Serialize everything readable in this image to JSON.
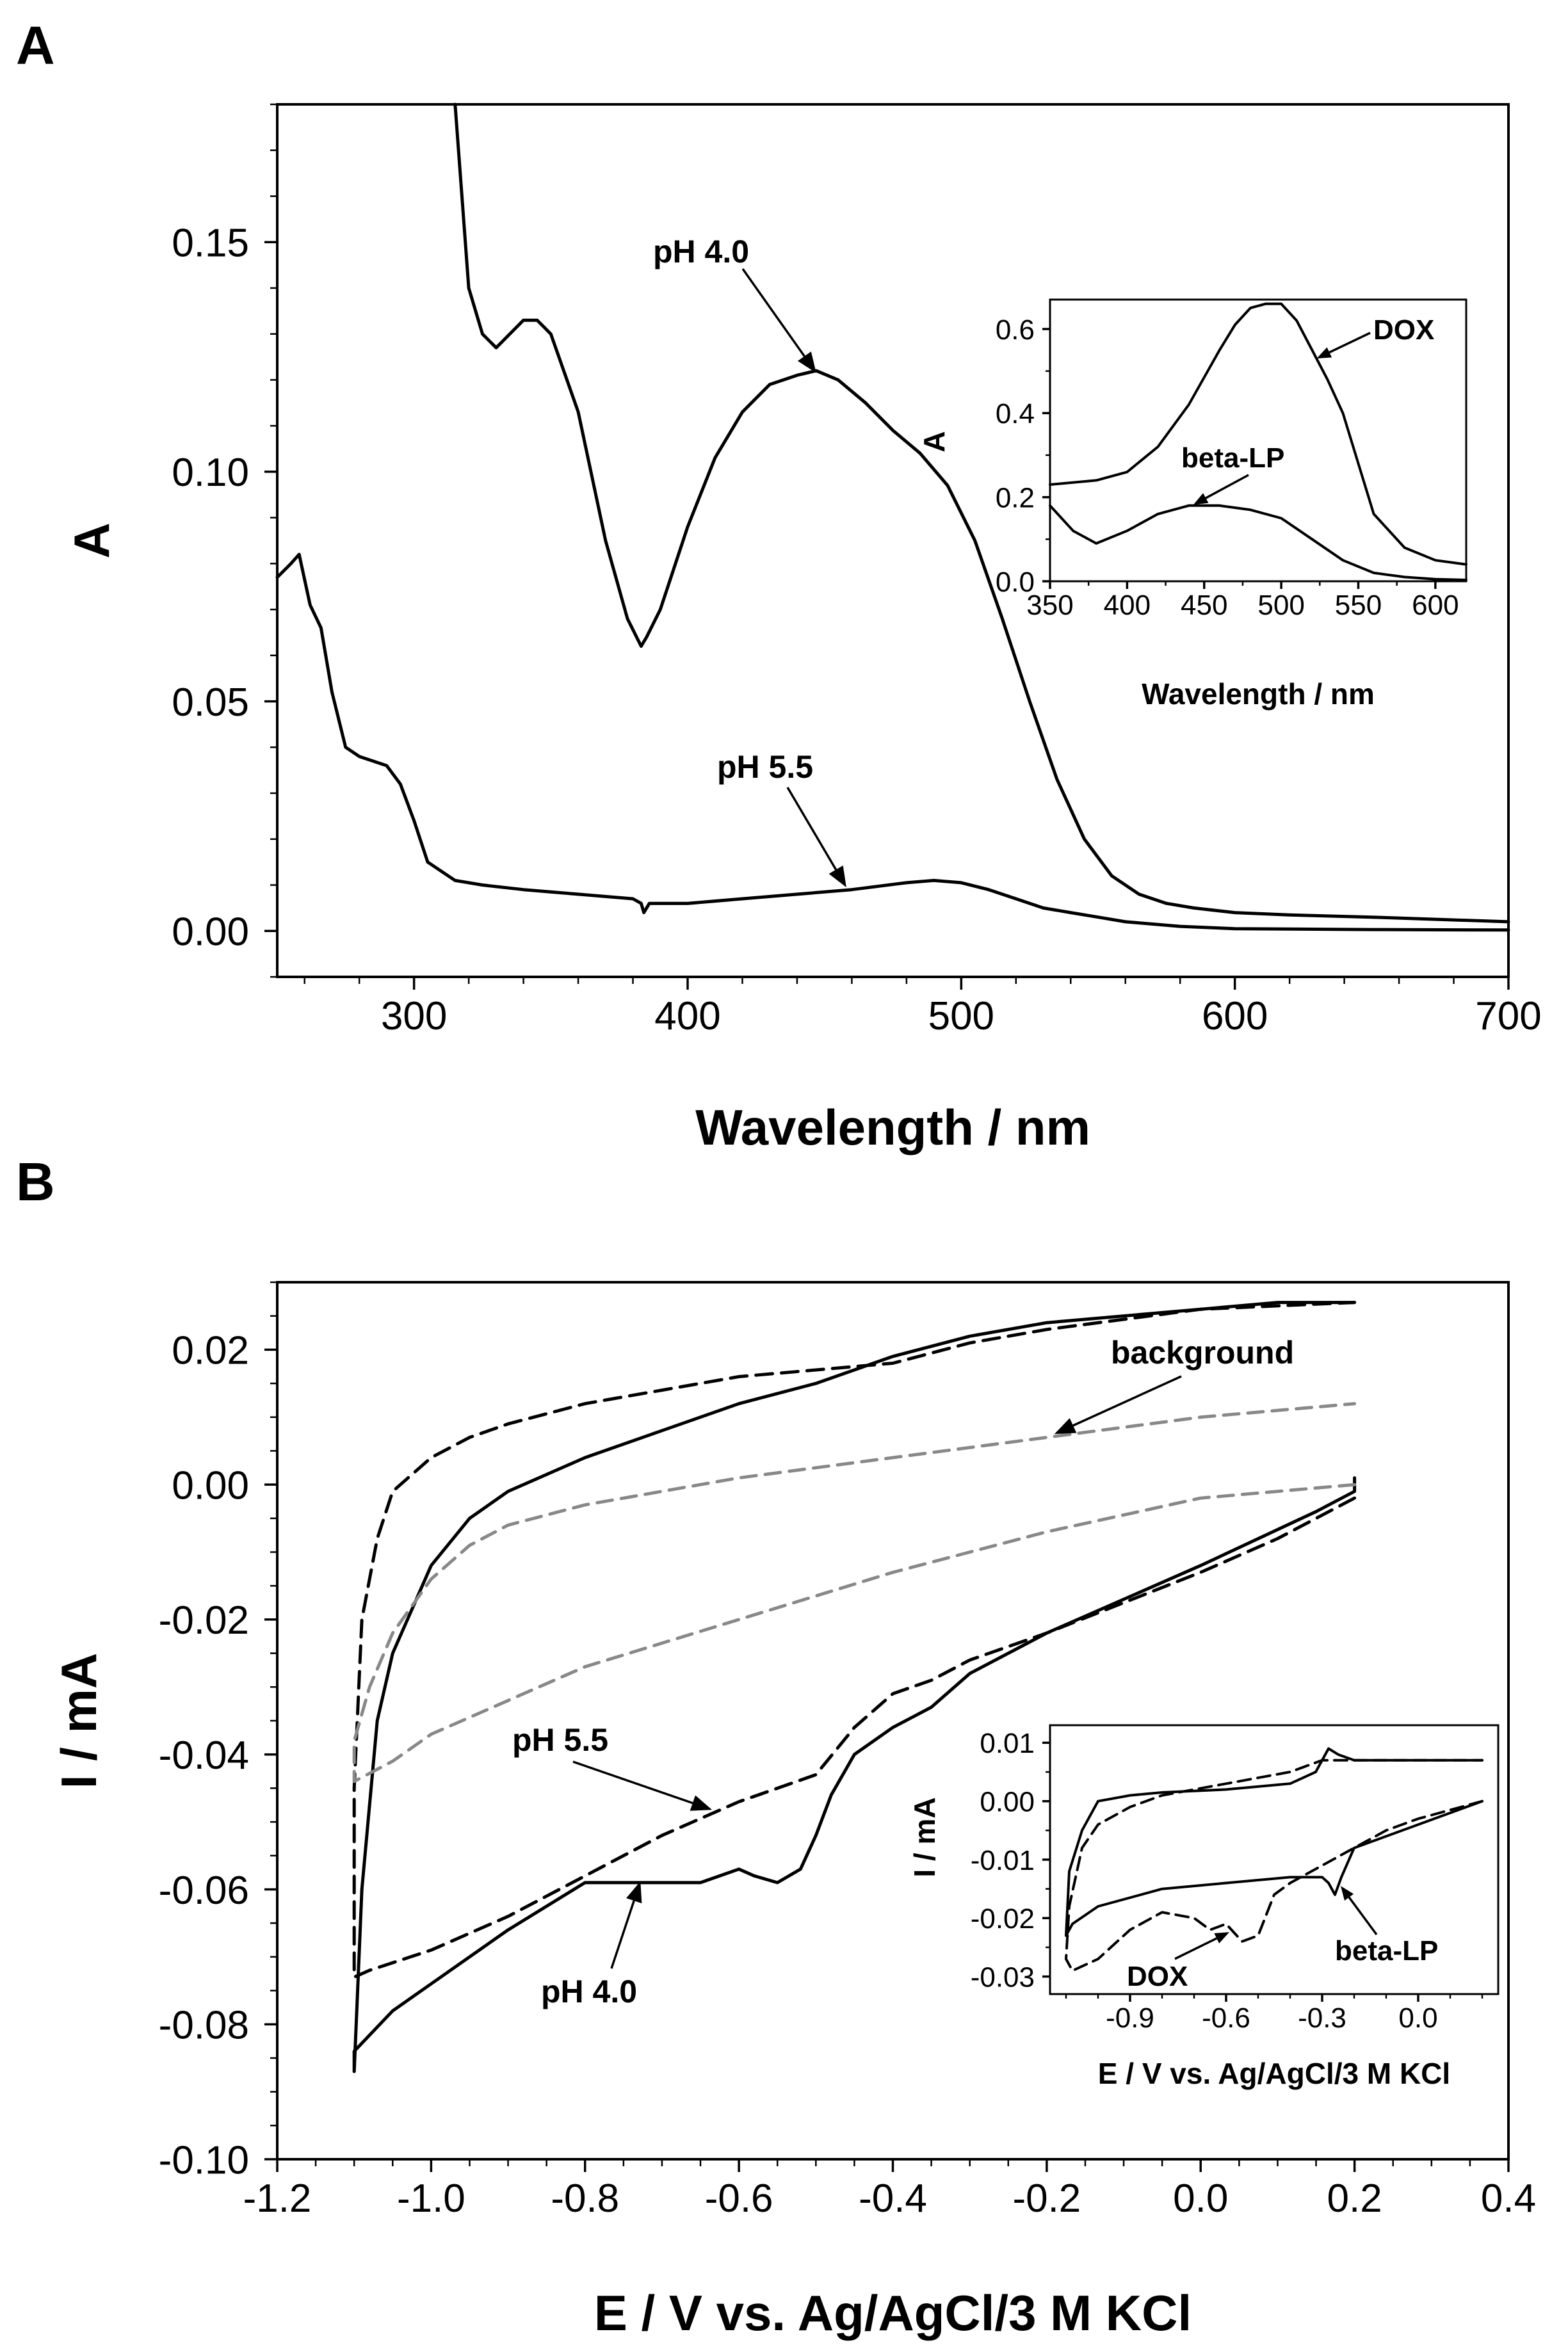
{
  "chart_data": [
    {
      "id": "A",
      "type": "line",
      "panel_label": "A",
      "xlabel": "Wavelength / nm",
      "ylabel": "A",
      "xlim": [
        250,
        700
      ],
      "ylim": [
        -0.01,
        0.18
      ],
      "xticks": [
        300,
        400,
        500,
        600,
        700
      ],
      "yticks": [
        0.0,
        0.05,
        0.1,
        0.15
      ],
      "xtick_labels": [
        "300",
        "400",
        "500",
        "600",
        "700"
      ],
      "ytick_labels": [
        "0.00",
        "0.05",
        "0.10",
        "0.15"
      ],
      "series": [
        {
          "name": "pH 4.0",
          "style": "solid",
          "x": [
            315,
            320,
            325,
            330,
            335,
            340,
            345,
            350,
            360,
            370,
            378,
            383,
            385,
            390,
            400,
            410,
            420,
            430,
            440,
            447,
            455,
            465,
            475,
            485,
            495,
            505,
            515,
            525,
            535,
            545,
            555,
            565,
            575,
            585,
            600,
            620,
            650,
            700
          ],
          "y": [
            0.18,
            0.14,
            0.13,
            0.127,
            0.13,
            0.133,
            0.133,
            0.13,
            0.113,
            0.085,
            0.068,
            0.062,
            0.064,
            0.07,
            0.088,
            0.103,
            0.113,
            0.119,
            0.121,
            0.122,
            0.12,
            0.115,
            0.109,
            0.104,
            0.097,
            0.085,
            0.068,
            0.05,
            0.033,
            0.02,
            0.012,
            0.008,
            0.006,
            0.005,
            0.004,
            0.0035,
            0.003,
            0.002
          ]
        },
        {
          "name": "pH 5.5",
          "style": "solid",
          "x": [
            250,
            255,
            258,
            262,
            266,
            270,
            275,
            280,
            290,
            295,
            300,
            305,
            315,
            325,
            340,
            360,
            380,
            383,
            384,
            386,
            400,
            420,
            440,
            460,
            480,
            490,
            500,
            510,
            520,
            530,
            540,
            550,
            560,
            580,
            600,
            650,
            700
          ],
          "y": [
            0.077,
            0.08,
            0.082,
            0.071,
            0.066,
            0.052,
            0.04,
            0.038,
            0.036,
            0.032,
            0.024,
            0.015,
            0.011,
            0.01,
            0.009,
            0.008,
            0.007,
            0.006,
            0.004,
            0.006,
            0.006,
            0.007,
            0.008,
            0.009,
            0.0105,
            0.011,
            0.0105,
            0.009,
            0.007,
            0.005,
            0.004,
            0.003,
            0.002,
            0.001,
            0.0005,
            0.0003,
            0.0002
          ]
        }
      ],
      "annotations": [
        "pH 4.0",
        "pH 5.5"
      ],
      "inset": {
        "type": "line",
        "xlabel": "Wavelength / nm",
        "ylabel": "A",
        "xlim": [
          350,
          620
        ],
        "ylim": [
          0.0,
          0.67
        ],
        "xticks": [
          350,
          400,
          450,
          500,
          550,
          600
        ],
        "yticks": [
          0.0,
          0.2,
          0.4,
          0.6
        ],
        "xtick_labels": [
          "350",
          "400",
          "450",
          "500",
          "550",
          "600"
        ],
        "ytick_labels": [
          "0.0",
          "0.2",
          "0.4",
          "0.6"
        ],
        "series": [
          {
            "name": "DOX",
            "x": [
              350,
              380,
              400,
              420,
              440,
              460,
              470,
              480,
              490,
              500,
              510,
              520,
              530,
              540,
              550,
              560,
              580,
              600,
              620
            ],
            "y": [
              0.23,
              0.24,
              0.26,
              0.32,
              0.42,
              0.55,
              0.61,
              0.65,
              0.66,
              0.66,
              0.62,
              0.55,
              0.48,
              0.4,
              0.28,
              0.16,
              0.08,
              0.05,
              0.04
            ]
          },
          {
            "name": "beta-LP",
            "x": [
              350,
              365,
              380,
              400,
              420,
              440,
              460,
              480,
              500,
              520,
              540,
              560,
              580,
              600,
              620
            ],
            "y": [
              0.18,
              0.12,
              0.09,
              0.12,
              0.16,
              0.18,
              0.18,
              0.17,
              0.15,
              0.1,
              0.05,
              0.02,
              0.01,
              0.005,
              0.003
            ]
          }
        ],
        "annotations": [
          "DOX",
          "beta-LP"
        ]
      }
    },
    {
      "id": "B",
      "type": "line",
      "panel_label": "B",
      "xlabel": "E / V vs. Ag/AgCl/3 M KCl",
      "ylabel": "I / mA",
      "xlim": [
        -1.2,
        0.4
      ],
      "ylim": [
        -0.1,
        0.03
      ],
      "xticks": [
        -1.2,
        -1.0,
        -0.8,
        -0.6,
        -0.4,
        -0.2,
        0.0,
        0.2,
        0.4
      ],
      "yticks": [
        -0.1,
        -0.08,
        -0.06,
        -0.04,
        -0.02,
        0.0,
        0.02
      ],
      "xtick_labels": [
        "-1.2",
        "-1.0",
        "-0.8",
        "-0.6",
        "-0.4",
        "-0.2",
        "0.0",
        "0.2",
        "0.4"
      ],
      "ytick_labels": [
        "-0.10",
        "-0.08",
        "-0.06",
        "-0.04",
        "-0.02",
        "0.00",
        "0.02"
      ],
      "series": [
        {
          "name": "pH 4.0",
          "style": "solid",
          "x": [
            0.2,
            0.2,
            0.15,
            0.0,
            -0.2,
            -0.3,
            -0.35,
            -0.4,
            -0.45,
            -0.48,
            -0.5,
            -0.52,
            -0.55,
            -0.58,
            -0.6,
            -0.65,
            -0.7,
            -0.8,
            -0.9,
            -1.0,
            -1.05,
            -1.1,
            -1.1,
            -1.09,
            -1.07,
            -1.05,
            -1.0,
            -0.95,
            -0.9,
            -0.8,
            -0.7,
            -0.6,
            -0.5,
            -0.45,
            -0.4,
            -0.3,
            -0.2,
            0.0,
            0.1,
            0.2
          ],
          "y": [
            0.001,
            -0.001,
            -0.004,
            -0.012,
            -0.022,
            -0.028,
            -0.033,
            -0.036,
            -0.04,
            -0.046,
            -0.052,
            -0.057,
            -0.059,
            -0.058,
            -0.057,
            -0.059,
            -0.059,
            -0.059,
            -0.066,
            -0.074,
            -0.078,
            -0.084,
            -0.087,
            -0.06,
            -0.035,
            -0.025,
            -0.012,
            -0.005,
            -0.001,
            0.004,
            0.008,
            0.012,
            0.015,
            0.017,
            0.019,
            0.022,
            0.024,
            0.026,
            0.027,
            0.027
          ]
        },
        {
          "name": "pH 5.5",
          "style": "dashed",
          "x": [
            0.2,
            0.1,
            0.0,
            -0.2,
            -0.3,
            -0.35,
            -0.4,
            -0.45,
            -0.5,
            -0.6,
            -0.7,
            -0.8,
            -0.9,
            -1.0,
            -1.08,
            -1.1,
            -1.1,
            -1.09,
            -1.07,
            -1.05,
            -1.0,
            -0.95,
            -0.9,
            -0.8,
            -0.7,
            -0.6,
            -0.5,
            -0.4,
            -0.3,
            -0.2,
            0.0,
            0.2
          ],
          "y": [
            -0.002,
            -0.008,
            -0.013,
            -0.022,
            -0.026,
            -0.029,
            -0.031,
            -0.036,
            -0.043,
            -0.047,
            -0.052,
            -0.058,
            -0.064,
            -0.069,
            -0.072,
            -0.073,
            -0.045,
            -0.02,
            -0.008,
            -0.001,
            0.004,
            0.007,
            0.009,
            0.012,
            0.014,
            0.016,
            0.017,
            0.018,
            0.021,
            0.023,
            0.026,
            0.027
          ]
        },
        {
          "name": "background",
          "style": "dashed-gray",
          "x": [
            0.2,
            0.0,
            -0.2,
            -0.4,
            -0.6,
            -0.8,
            -0.9,
            -1.0,
            -1.05,
            -1.1,
            -1.1,
            -1.08,
            -1.05,
            -1.0,
            -0.95,
            -0.9,
            -0.8,
            -0.6,
            -0.4,
            -0.2,
            0.0,
            0.2
          ],
          "y": [
            0.0,
            -0.002,
            -0.007,
            -0.013,
            -0.02,
            -0.027,
            -0.032,
            -0.037,
            -0.041,
            -0.044,
            -0.038,
            -0.03,
            -0.022,
            -0.014,
            -0.009,
            -0.006,
            -0.003,
            0.001,
            0.004,
            0.007,
            0.01,
            0.012
          ]
        }
      ],
      "annotations": [
        "background",
        "pH 5.5",
        "pH 4.0"
      ],
      "inset": {
        "type": "line",
        "xlabel": "E / V vs. Ag/AgCl/3 M KCl",
        "ylabel": "I / mA",
        "xlim": [
          -1.15,
          0.25
        ],
        "ylim": [
          -0.033,
          0.013
        ],
        "xticks": [
          -0.9,
          -0.6,
          -0.3,
          0.0
        ],
        "yticks": [
          -0.03,
          -0.02,
          -0.01,
          0.0,
          0.01
        ],
        "xtick_labels": [
          "-0.9",
          "-0.6",
          "-0.3",
          "0.0"
        ],
        "ytick_labels": [
          "-0.03",
          "-0.02",
          "-0.01",
          "0.00",
          "0.01"
        ],
        "series": [
          {
            "name": "beta-LP",
            "style": "solid",
            "x": [
              0.2,
              0.1,
              0.0,
              -0.1,
              -0.15,
              -0.2,
              -0.24,
              -0.26,
              -0.28,
              -0.3,
              -0.4,
              -0.6,
              -0.8,
              -1.0,
              -1.08,
              -1.1,
              -1.09,
              -1.05,
              -1.0,
              -0.9,
              -0.8,
              -0.6,
              -0.4,
              -0.32,
              -0.28,
              -0.25,
              -0.2,
              0.0,
              0.2
            ],
            "y": [
              0.0,
              -0.002,
              -0.004,
              -0.006,
              -0.007,
              -0.008,
              -0.013,
              -0.016,
              -0.014,
              -0.013,
              -0.013,
              -0.014,
              -0.015,
              -0.018,
              -0.021,
              -0.023,
              -0.012,
              -0.005,
              0.0,
              0.001,
              0.0015,
              0.002,
              0.003,
              0.005,
              0.009,
              0.008,
              0.007,
              0.007,
              0.007
            ]
          },
          {
            "name": "DOX",
            "style": "dashed",
            "x": [
              0.2,
              0.0,
              -0.1,
              -0.2,
              -0.3,
              -0.4,
              -0.45,
              -0.5,
              -0.55,
              -0.6,
              -0.65,
              -0.7,
              -0.8,
              -0.9,
              -1.0,
              -1.08,
              -1.1,
              -1.09,
              -1.05,
              -1.0,
              -0.9,
              -0.8,
              -0.6,
              -0.4,
              -0.3,
              -0.2,
              0.0,
              0.2
            ],
            "y": [
              0.0,
              -0.003,
              -0.005,
              -0.008,
              -0.011,
              -0.014,
              -0.016,
              -0.023,
              -0.024,
              -0.021,
              -0.022,
              -0.02,
              -0.019,
              -0.022,
              -0.027,
              -0.029,
              -0.027,
              -0.018,
              -0.008,
              -0.004,
              -0.001,
              0.001,
              0.003,
              0.005,
              0.007,
              0.007,
              0.007,
              0.007
            ]
          }
        ],
        "annotations": [
          "DOX",
          "beta-LP"
        ]
      }
    }
  ]
}
